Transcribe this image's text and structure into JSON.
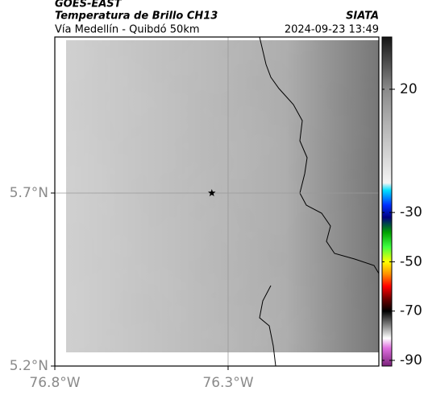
{
  "header": {
    "source": "GOES-EAST",
    "title": "Temperatura de Brillo CH13",
    "subtitle": "Vía Medellín - Quibdó 50km",
    "brand": "SIATA",
    "timestamp": "2024-09-23 13:49"
  },
  "map": {
    "type": "map",
    "xlim": [
      -76.8,
      -75.865
    ],
    "ylim": [
      5.2,
      6.151
    ],
    "xticks": [
      {
        "value": -76.8,
        "label": "76.8°W"
      },
      {
        "value": -76.3,
        "label": "76.3°W"
      }
    ],
    "yticks": [
      {
        "value": 5.2,
        "label": "5.2°N"
      },
      {
        "value": 5.7,
        "label": "5.7°N"
      }
    ],
    "grid": true,
    "marker": {
      "x": -76.347,
      "y": 5.7
    },
    "colorbar": {
      "lim": [
        -92.3,
        41.2
      ],
      "ticks": [
        20,
        -30,
        -50,
        -70,
        -90
      ],
      "stops": [
        {
          "value": 41.2,
          "color": "#151515"
        },
        {
          "value": 20,
          "color": "#8a8a8a"
        },
        {
          "value": -18,
          "color": "#f4f4f4"
        },
        {
          "value": -21,
          "color": "#00e0ff"
        },
        {
          "value": -27,
          "color": "#0030ff"
        },
        {
          "value": -32,
          "color": "#000080"
        },
        {
          "value": -38,
          "color": "#00a000"
        },
        {
          "value": -44,
          "color": "#40ff40"
        },
        {
          "value": -50,
          "color": "#ffff00"
        },
        {
          "value": -55,
          "color": "#ff9000"
        },
        {
          "value": -60,
          "color": "#ff0000"
        },
        {
          "value": -65,
          "color": "#700000"
        },
        {
          "value": -70,
          "color": "#000000"
        },
        {
          "value": -77,
          "color": "#a0a0a0"
        },
        {
          "value": -81,
          "color": "#ffffff"
        },
        {
          "value": -85,
          "color": "#e070e0"
        },
        {
          "value": -92.3,
          "color": "#7a207a"
        }
      ]
    }
  }
}
